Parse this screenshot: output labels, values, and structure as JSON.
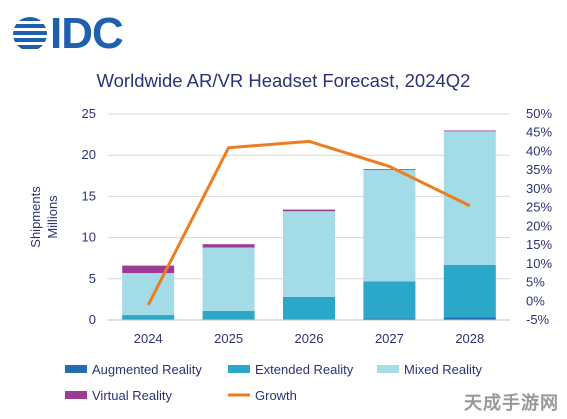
{
  "logo": {
    "text": "IDC",
    "color": "#1f5fb0"
  },
  "watermark": "天成手游网",
  "chart_data": {
    "type": "bar",
    "title": "Worldwide AR/VR Headset Forecast, 2024Q2",
    "categories": [
      "2024",
      "2025",
      "2026",
      "2027",
      "2028"
    ],
    "ylabel": "Shipments\nMillions",
    "ylim": [
      0,
      25
    ],
    "yticks": [
      "0",
      "5",
      "10",
      "15",
      "20",
      "25"
    ],
    "y2lim": [
      -5,
      50
    ],
    "y2ticks": [
      "-5%",
      "0%",
      "5%",
      "10%",
      "15%",
      "20%",
      "25%",
      "30%",
      "35%",
      "40%",
      "45%",
      "50%"
    ],
    "grid": true,
    "stacked": true,
    "series": [
      {
        "name": "Augmented Reality",
        "color": "#1f6db5",
        "values": [
          0.1,
          0.1,
          0.1,
          0.2,
          0.3
        ]
      },
      {
        "name": "Extended Reality",
        "color": "#2ba7c8",
        "values": [
          0.5,
          1.0,
          2.7,
          4.5,
          6.4
        ]
      },
      {
        "name": "Mixed Reality",
        "color": "#a3dbe6",
        "values": [
          5.1,
          7.7,
          10.4,
          13.5,
          16.2
        ]
      },
      {
        "name": "Virtual Reality",
        "color": "#9b3b93",
        "values": [
          0.9,
          0.4,
          0.2,
          0.1,
          0.1
        ]
      }
    ],
    "line_series": {
      "name": "Growth",
      "color": "#ee7d22",
      "axis": "right",
      "values": [
        -1.0,
        41.0,
        42.7,
        36.0,
        25.5
      ]
    },
    "legend_position": "bottom"
  }
}
